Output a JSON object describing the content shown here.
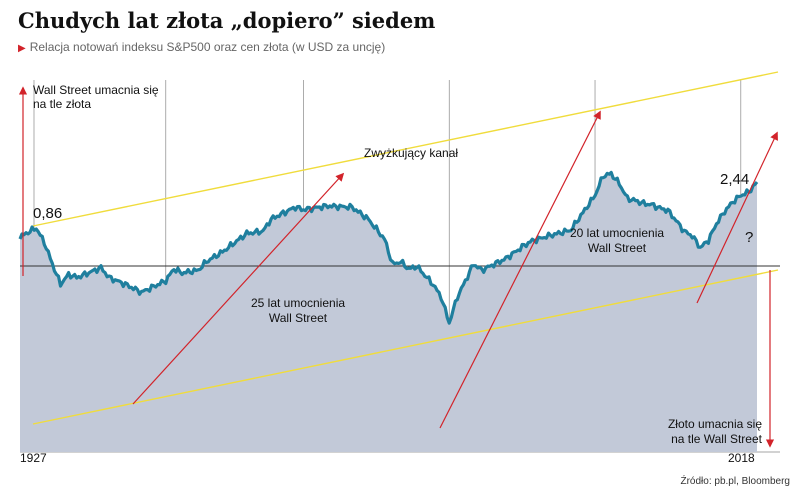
{
  "header": {
    "title": "Chudych lat złota „dopiero” siedem",
    "subtitle": "Relacja notowań indeksu S&P500 oraz cen złota (w USD za uncję)"
  },
  "footer": {
    "source": "Źródło: pb.pl, Bloomberg"
  },
  "colors": {
    "line": "#1f7f9e",
    "area": "#c2c9d8",
    "channel": "#f0dc3c",
    "arrows": "#d2232a",
    "grid": "#888888",
    "baseline": "#333333"
  },
  "chart_data": {
    "type": "area",
    "title": "Chudych lat złota „dopiero” siedem",
    "subtitle": "Relacja notowań indeksu S&P500 oraz cen złota (w USD za uncję)",
    "xlim": [
      1927,
      2018
    ],
    "x_tick_labels": [
      "1927",
      "2018"
    ],
    "log_scale_y": true,
    "grid": "vertical",
    "series": [
      {
        "x": [
          1927,
          1928,
          1929,
          1930,
          1931,
          1932,
          1933,
          1934,
          1935,
          1937,
          1938,
          1940,
          1942,
          1945,
          1946,
          1947,
          1949,
          1950,
          1952,
          1955,
          1957,
          1958,
          1961,
          1962,
          1965,
          1966,
          1968,
          1970,
          1972,
          1973,
          1974,
          1975,
          1976,
          1978,
          1979,
          1980,
          1981,
          1982,
          1983,
          1984,
          1987,
          1989,
          1990,
          1992,
          1995,
          1998,
          1999,
          2000,
          2001,
          2002,
          2003,
          2004,
          2005,
          2006,
          2007,
          2008,
          2009,
          2010,
          2011,
          2012,
          2013,
          2014,
          2015,
          2016,
          2017,
          2018
        ],
        "values": [
          0.7,
          0.78,
          0.86,
          0.62,
          0.38,
          0.24,
          0.3,
          0.28,
          0.3,
          0.35,
          0.28,
          0.24,
          0.2,
          0.26,
          0.34,
          0.31,
          0.33,
          0.4,
          0.5,
          0.76,
          0.8,
          1.05,
          1.38,
          1.3,
          1.42,
          1.4,
          1.38,
          1.05,
          0.67,
          0.38,
          0.4,
          0.34,
          0.36,
          0.24,
          0.18,
          0.1,
          0.18,
          0.26,
          0.38,
          0.33,
          0.43,
          0.56,
          0.63,
          0.71,
          0.82,
          1.8,
          2.8,
          2.95,
          2.35,
          1.68,
          1.6,
          1.5,
          1.46,
          1.35,
          1.28,
          1.02,
          0.8,
          0.72,
          0.55,
          0.65,
          0.95,
          1.25,
          1.55,
          1.8,
          1.95,
          2.44
        ]
      }
    ],
    "annotations": [
      "Wall Street umacnia się na tle złota",
      "0,86",
      "Zwyżkujący kanał",
      "25 lat umocnienia Wall Street",
      "20 lat umocnienia Wall Street",
      "2,44",
      "?",
      "Złoto umacnia się na tle Wall Street"
    ]
  },
  "labels": {
    "x_start": "1927",
    "x_end": "2018",
    "ws_strength_1": "Wall Street umacnia się",
    "ws_strength_2": "na tle złota",
    "value_start": "0,86",
    "channel": "Zwyżkujący kanał",
    "period_25_1": "25 lat umocnienia",
    "period_25_2": "Wall Street",
    "period_20_1": "20 lat umocnienia",
    "period_20_2": "Wall Street",
    "value_end": "2,44",
    "question": "?",
    "gold_strength_1": "Złoto umacnia się",
    "gold_strength_2": "na tle Wall Street"
  }
}
